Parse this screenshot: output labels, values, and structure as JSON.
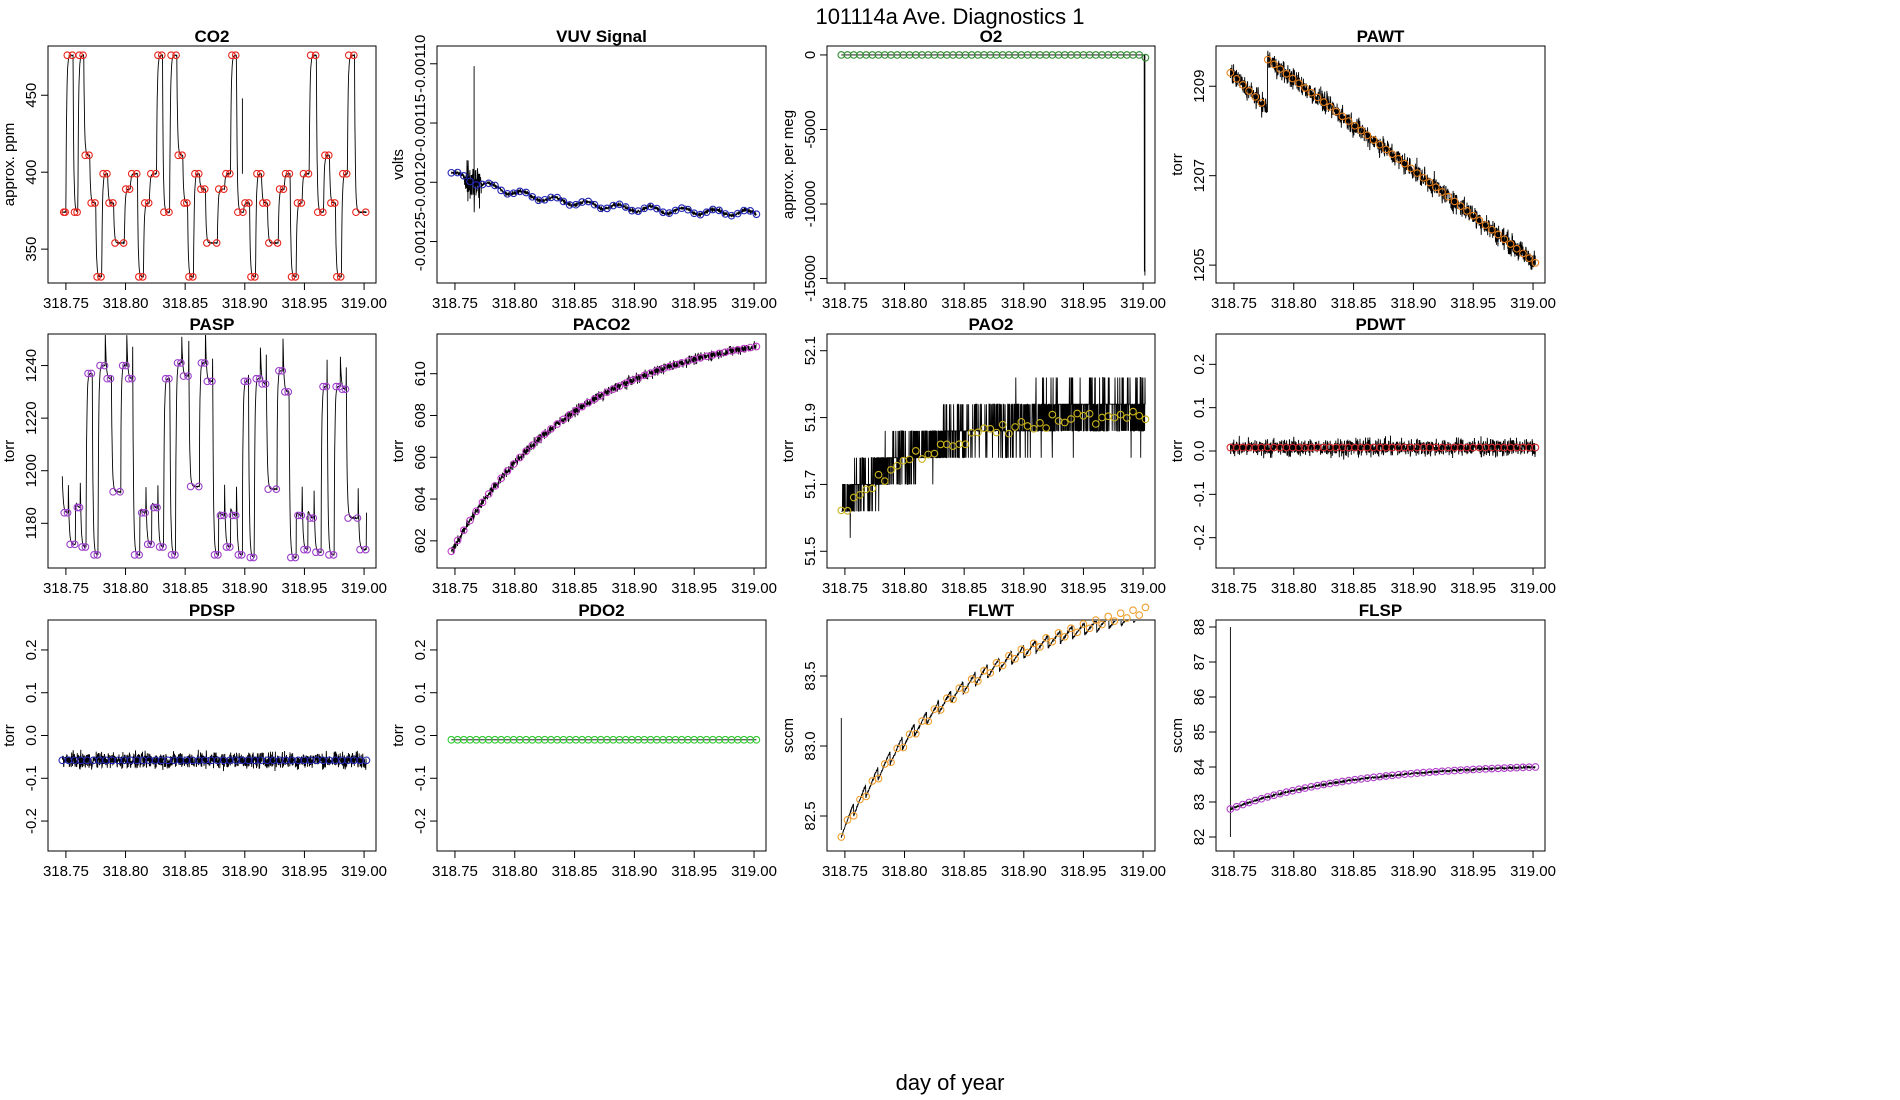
{
  "figure": {
    "title": "101114a   Ave. Diagnostics 1",
    "xlabel": "day of year"
  },
  "chart_data": [
    {
      "id": "co2",
      "type": "line",
      "title": "CO2",
      "ylabel": "approx. ppm",
      "xlim": [
        318.735,
        319.01
      ],
      "ylim": [
        328,
        482
      ],
      "xticks": [
        318.75,
        318.8,
        318.85,
        318.9,
        318.95,
        319.0
      ],
      "xtick_labels": [
        "318.75",
        "318.80",
        "318.85",
        "318.90",
        "318.95",
        "319.00"
      ],
      "yticks": [
        350,
        400,
        450
      ],
      "ytick_labels": [
        "350",
        "400",
        "450"
      ],
      "marker_color": "#e8231c",
      "signal": "co2"
    },
    {
      "id": "vuv",
      "type": "line",
      "title": "VUV Signal",
      "ylabel": "volts",
      "xlim": [
        318.735,
        319.01
      ],
      "ylim": [
        -0.001285,
        -0.001085
      ],
      "xticks": [
        318.75,
        318.8,
        318.85,
        318.9,
        318.95,
        319.0
      ],
      "xtick_labels": [
        "318.75",
        "318.80",
        "318.85",
        "318.90",
        "318.95",
        "319.00"
      ],
      "yticks": [
        -0.00125,
        -0.0012,
        -0.00115,
        -0.0011
      ],
      "ytick_labels": [
        "-0.00125",
        "-0.00120",
        "-0.00115",
        "-0.00110"
      ],
      "marker_color": "#2326b5",
      "signal": "vuv"
    },
    {
      "id": "o2",
      "type": "line",
      "title": "O2",
      "ylabel": "approx. per meg",
      "xlim": [
        318.735,
        319.01
      ],
      "ylim": [
        -15300,
        600
      ],
      "xticks": [
        318.75,
        318.8,
        318.85,
        318.9,
        318.95,
        319.0
      ],
      "xtick_labels": [
        "318.75",
        "318.80",
        "318.85",
        "318.90",
        "318.95",
        "319.00"
      ],
      "yticks": [
        -15000,
        -10000,
        -5000,
        0
      ],
      "ytick_labels": [
        "-15000",
        "-10000",
        "-5000",
        "0"
      ],
      "marker_color": "#2e8b2e",
      "signal": "o2"
    },
    {
      "id": "pawt",
      "type": "line",
      "title": "PAWT",
      "ylabel": "torr",
      "xlim": [
        318.735,
        319.01
      ],
      "ylim": [
        1204.6,
        1209.9
      ],
      "xticks": [
        318.75,
        318.8,
        318.85,
        318.9,
        318.95,
        319.0
      ],
      "xtick_labels": [
        "318.75",
        "318.80",
        "318.85",
        "318.90",
        "318.95",
        "319.00"
      ],
      "yticks": [
        1205,
        1207,
        1209
      ],
      "ytick_labels": [
        "1205",
        "1207",
        "1209"
      ],
      "marker_color": "#e8801c",
      "signal": "pawt"
    },
    {
      "id": "pasp",
      "type": "line",
      "title": "PASP",
      "ylabel": "torr",
      "xlim": [
        318.735,
        319.01
      ],
      "ylim": [
        1163,
        1252
      ],
      "xticks": [
        318.75,
        318.8,
        318.85,
        318.9,
        318.95,
        319.0
      ],
      "xtick_labels": [
        "318.75",
        "318.80",
        "318.85",
        "318.90",
        "318.95",
        "319.00"
      ],
      "yticks": [
        1180,
        1200,
        1220,
        1240
      ],
      "ytick_labels": [
        "1180",
        "1200",
        "1220",
        "1240"
      ],
      "marker_color": "#9a3fc9",
      "signal": "pasp"
    },
    {
      "id": "paco2",
      "type": "line",
      "title": "PACO2",
      "ylabel": "torr",
      "xlim": [
        318.735,
        319.01
      ],
      "ylim": [
        600.7,
        611.9
      ],
      "xticks": [
        318.75,
        318.8,
        318.85,
        318.9,
        318.95,
        319.0
      ],
      "xtick_labels": [
        "318.75",
        "318.80",
        "318.85",
        "318.90",
        "318.95",
        "319.00"
      ],
      "yticks": [
        602,
        604,
        606,
        608,
        610
      ],
      "ytick_labels": [
        "602",
        "604",
        "606",
        "608",
        "610"
      ],
      "marker_color": "#c23fc9",
      "signal": "paco2"
    },
    {
      "id": "pao2",
      "type": "line",
      "title": "PAO2",
      "ylabel": "torr",
      "xlim": [
        318.735,
        319.01
      ],
      "ylim": [
        51.45,
        52.15
      ],
      "xticks": [
        318.75,
        318.8,
        318.85,
        318.9,
        318.95,
        319.0
      ],
      "xtick_labels": [
        "318.75",
        "318.80",
        "318.85",
        "318.90",
        "318.95",
        "319.00"
      ],
      "yticks": [
        51.5,
        51.7,
        51.9,
        52.1
      ],
      "ytick_labels": [
        "51.5",
        "51.7",
        "51.9",
        "52.1"
      ],
      "marker_color": "#c9b21c",
      "signal": "pao2"
    },
    {
      "id": "pdwt",
      "type": "line",
      "title": "PDWT",
      "ylabel": "torr",
      "xlim": [
        318.735,
        319.01
      ],
      "ylim": [
        -0.27,
        0.27
      ],
      "xticks": [
        318.75,
        318.8,
        318.85,
        318.9,
        318.95,
        319.0
      ],
      "xtick_labels": [
        "318.75",
        "318.80",
        "318.85",
        "318.90",
        "318.95",
        "319.00"
      ],
      "yticks": [
        -0.2,
        -0.1,
        0.0,
        0.1,
        0.2
      ],
      "ytick_labels": [
        "-0.2",
        "-0.1",
        "0.0",
        "0.1",
        "0.2"
      ],
      "marker_color": "#d42a2a",
      "signal": "pdwt"
    },
    {
      "id": "pdsp",
      "type": "line",
      "title": "PDSP",
      "ylabel": "torr",
      "xlim": [
        318.735,
        319.01
      ],
      "ylim": [
        -0.27,
        0.27
      ],
      "xticks": [
        318.75,
        318.8,
        318.85,
        318.9,
        318.95,
        319.0
      ],
      "xtick_labels": [
        "318.75",
        "318.80",
        "318.85",
        "318.90",
        "318.95",
        "319.00"
      ],
      "yticks": [
        -0.2,
        -0.1,
        0.0,
        0.1,
        0.2
      ],
      "ytick_labels": [
        "-0.2",
        "-0.1",
        "0.0",
        "0.1",
        "0.2"
      ],
      "marker_color": "#2326b5",
      "signal": "pdsp"
    },
    {
      "id": "pdo2",
      "type": "line",
      "title": "PDO2",
      "ylabel": "torr",
      "xlim": [
        318.735,
        319.01
      ],
      "ylim": [
        -0.27,
        0.27
      ],
      "xticks": [
        318.75,
        318.8,
        318.85,
        318.9,
        318.95,
        319.0
      ],
      "xtick_labels": [
        "318.75",
        "318.80",
        "318.85",
        "318.90",
        "318.95",
        "319.00"
      ],
      "yticks": [
        -0.2,
        -0.1,
        0.0,
        0.1,
        0.2
      ],
      "ytick_labels": [
        "-0.2",
        "-0.1",
        "0.0",
        "0.1",
        "0.2"
      ],
      "marker_color": "#2ec92e",
      "signal": "pdo2"
    },
    {
      "id": "flwt",
      "type": "line",
      "title": "FLWT",
      "ylabel": "sccm",
      "xlim": [
        318.735,
        319.01
      ],
      "ylim": [
        82.25,
        83.9
      ],
      "xticks": [
        318.75,
        318.8,
        318.85,
        318.9,
        318.95,
        319.0
      ],
      "xtick_labels": [
        "318.75",
        "318.80",
        "318.85",
        "318.90",
        "318.95",
        "319.00"
      ],
      "yticks": [
        82.5,
        83.0,
        83.5
      ],
      "ytick_labels": [
        "82.5",
        "83.0",
        "83.5"
      ],
      "marker_color": "#f0a030",
      "signal": "flwt"
    },
    {
      "id": "flsp",
      "type": "line",
      "title": "FLSP",
      "ylabel": "sccm",
      "xlim": [
        318.735,
        319.01
      ],
      "ylim": [
        81.6,
        88.2
      ],
      "xticks": [
        318.75,
        318.8,
        318.85,
        318.9,
        318.95,
        319.0
      ],
      "xtick_labels": [
        "318.75",
        "318.80",
        "318.85",
        "318.90",
        "318.95",
        "319.00"
      ],
      "yticks": [
        82,
        83,
        84,
        85,
        86,
        87,
        88
      ],
      "ytick_labels": [
        "82",
        "83",
        "84",
        "85",
        "86",
        "87",
        "88"
      ],
      "marker_color": "#b040c9",
      "signal": "flsp"
    }
  ],
  "co2_levels": [
    {
      "start": 318.747,
      "level": 374
    },
    {
      "start": 318.75,
      "level": 476
    },
    {
      "start": 318.756,
      "level": 374
    },
    {
      "start": 318.76,
      "level": 476
    },
    {
      "start": 318.765,
      "level": 411
    },
    {
      "start": 318.77,
      "level": 380
    },
    {
      "start": 318.775,
      "level": 332
    },
    {
      "start": 318.78,
      "level": 399
    },
    {
      "start": 318.785,
      "level": 380
    },
    {
      "start": 318.79,
      "level": 354
    },
    {
      "start": 318.799,
      "level": 389
    },
    {
      "start": 318.804,
      "level": 399
    },
    {
      "start": 318.81,
      "level": 332
    },
    {
      "start": 318.815,
      "level": 380
    },
    {
      "start": 318.82,
      "level": 399
    },
    {
      "start": 318.826,
      "level": 476
    },
    {
      "start": 318.831,
      "level": 374
    },
    {
      "start": 318.837,
      "level": 476
    },
    {
      "start": 318.843,
      "level": 411
    },
    {
      "start": 318.848,
      "level": 380
    },
    {
      "start": 318.852,
      "level": 332
    },
    {
      "start": 318.857,
      "level": 399
    },
    {
      "start": 318.862,
      "level": 389
    },
    {
      "start": 318.867,
      "level": 354
    },
    {
      "start": 318.877,
      "level": 389
    },
    {
      "start": 318.883,
      "level": 399
    },
    {
      "start": 318.888,
      "level": 476
    },
    {
      "start": 318.893,
      "level": 374
    },
    {
      "start": 318.899,
      "level": 380
    },
    {
      "start": 318.904,
      "level": 332
    },
    {
      "start": 318.909,
      "level": 399
    },
    {
      "start": 318.914,
      "level": 380
    },
    {
      "start": 318.919,
      "level": 354
    },
    {
      "start": 318.928,
      "level": 389
    },
    {
      "start": 318.933,
      "level": 399
    },
    {
      "start": 318.938,
      "level": 332
    },
    {
      "start": 318.943,
      "level": 380
    },
    {
      "start": 318.948,
      "level": 399
    },
    {
      "start": 318.954,
      "level": 476
    },
    {
      "start": 318.96,
      "level": 374
    },
    {
      "start": 318.966,
      "level": 411
    },
    {
      "start": 318.971,
      "level": 380
    },
    {
      "start": 318.976,
      "level": 332
    },
    {
      "start": 318.981,
      "level": 399
    },
    {
      "start": 318.986,
      "level": 476
    },
    {
      "start": 318.992,
      "level": 374
    },
    {
      "start": 319.002,
      "level": 374
    }
  ],
  "pasp_levels": [
    {
      "start": 318.747,
      "level": 1184
    },
    {
      "start": 318.752,
      "level": 1172
    },
    {
      "start": 318.758,
      "level": 1186
    },
    {
      "start": 318.762,
      "level": 1171
    },
    {
      "start": 318.767,
      "level": 1237
    },
    {
      "start": 318.772,
      "level": 1168
    },
    {
      "start": 318.777,
      "level": 1240
    },
    {
      "start": 318.783,
      "level": 1235
    },
    {
      "start": 318.788,
      "level": 1192
    },
    {
      "start": 318.796,
      "level": 1240
    },
    {
      "start": 318.801,
      "level": 1235
    },
    {
      "start": 318.806,
      "level": 1168
    },
    {
      "start": 318.812,
      "level": 1184
    },
    {
      "start": 318.817,
      "level": 1172
    },
    {
      "start": 318.822,
      "level": 1186
    },
    {
      "start": 318.827,
      "level": 1171
    },
    {
      "start": 318.832,
      "level": 1235
    },
    {
      "start": 318.837,
      "level": 1168
    },
    {
      "start": 318.842,
      "level": 1241
    },
    {
      "start": 318.847,
      "level": 1236
    },
    {
      "start": 318.853,
      "level": 1194
    },
    {
      "start": 318.862,
      "level": 1241
    },
    {
      "start": 318.867,
      "level": 1234
    },
    {
      "start": 318.873,
      "level": 1168
    },
    {
      "start": 318.878,
      "level": 1183
    },
    {
      "start": 318.883,
      "level": 1171
    },
    {
      "start": 318.888,
      "level": 1183
    },
    {
      "start": 318.893,
      "level": 1168
    },
    {
      "start": 318.898,
      "level": 1234
    },
    {
      "start": 318.903,
      "level": 1167
    },
    {
      "start": 318.908,
      "level": 1235
    },
    {
      "start": 318.913,
      "level": 1233
    },
    {
      "start": 318.918,
      "level": 1193
    },
    {
      "start": 318.927,
      "level": 1238
    },
    {
      "start": 318.932,
      "level": 1230
    },
    {
      "start": 318.937,
      "level": 1167
    },
    {
      "start": 318.943,
      "level": 1183
    },
    {
      "start": 318.948,
      "level": 1170
    },
    {
      "start": 318.953,
      "level": 1182
    },
    {
      "start": 318.958,
      "level": 1169
    },
    {
      "start": 318.964,
      "level": 1232
    },
    {
      "start": 318.969,
      "level": 1168
    },
    {
      "start": 318.975,
      "level": 1232
    },
    {
      "start": 318.98,
      "level": 1231
    },
    {
      "start": 318.985,
      "level": 1182
    },
    {
      "start": 318.995,
      "level": 1170
    },
    {
      "start": 319.002,
      "level": 1170
    }
  ]
}
